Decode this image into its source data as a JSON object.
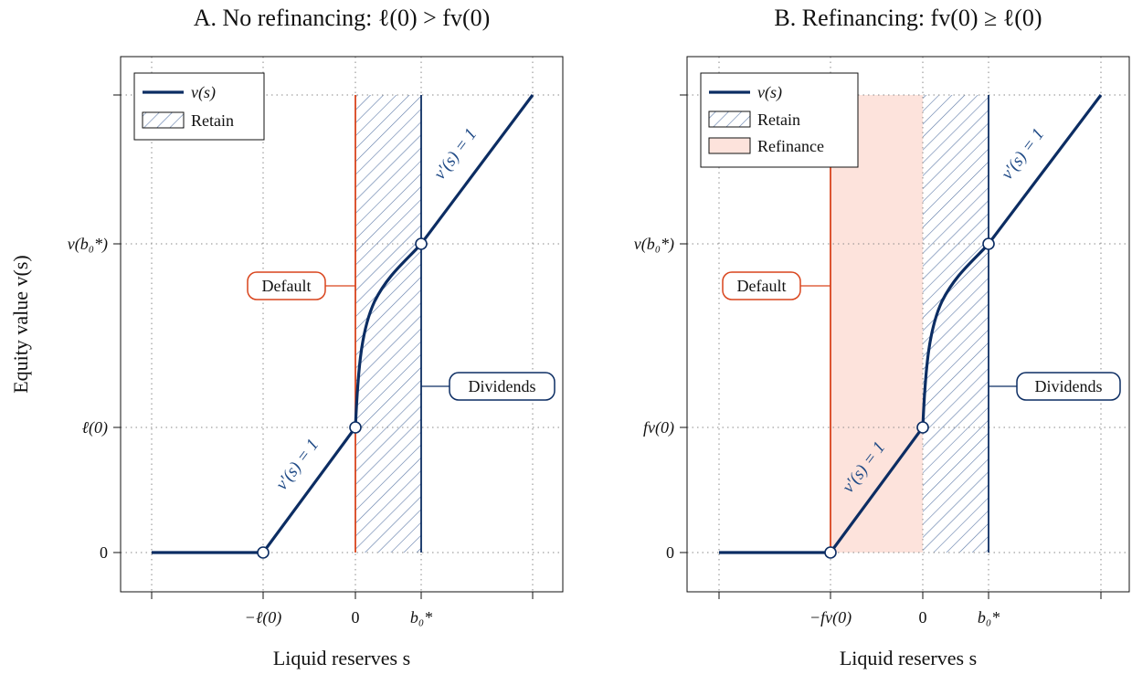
{
  "colors": {
    "value_line": "#0c2d63",
    "default": "#d9441c",
    "dividend": "#0c2d63",
    "retain_hatch": "#5e7aa8",
    "refinance_fill": "#fde3dc",
    "grid": "#8a8a8a"
  },
  "chart_data": [
    {
      "type": "line",
      "title": "A. No refinancing: ℓ(0) > fv(0)",
      "xlabel": "Liquid reserves s",
      "ylabel": "Equity value v(s)",
      "x_ticks": [
        "−ℓ(0)",
        "0",
        "b₀*"
      ],
      "y_ticks": [
        "0",
        "ℓ(0)",
        "v(b₀*)"
      ],
      "xlim": [
        -3,
        2.6
      ],
      "ylim": [
        -0.6,
        4.6
      ],
      "grid": true,
      "legend_position": "top-left",
      "legend": [
        {
          "label": "v(s)",
          "style": "line"
        },
        {
          "label": "Retain",
          "style": "hatch"
        }
      ],
      "series": [
        {
          "name": "v(s)",
          "x": [
            -3,
            -1.35,
            0,
            0.03,
            0.08,
            0.15,
            0.25,
            0.4,
            0.6,
            0.8,
            0.96,
            2.6
          ],
          "y": [
            0,
            0,
            1.35,
            1.65,
            1.95,
            2.2,
            2.45,
            2.7,
            2.93,
            3.13,
            2.95,
            4.6
          ]
        }
      ],
      "key_points": [
        {
          "x": -1.35,
          "y": 0
        },
        {
          "x": 0,
          "y": 1.35
        },
        {
          "x": 0.96,
          "y": 2.95
        }
      ],
      "regions": [
        {
          "label": "Retain",
          "x": [
            0,
            0.96
          ]
        }
      ],
      "boundaries": [
        {
          "label": "Default",
          "x": 0
        },
        {
          "label": "Dividends",
          "x": 0.96
        }
      ],
      "annotations": [
        "Default",
        "Dividends",
        "v′(s) = 1",
        "v′(s) = 1"
      ]
    },
    {
      "type": "line",
      "title": "B. Refinancing: fv(0) ≥ ℓ(0)",
      "xlabel": "Liquid reserves s",
      "ylabel": "",
      "x_ticks": [
        "−fv(0)",
        "0",
        "b₀*"
      ],
      "y_ticks": [
        "0",
        "fv(0)",
        "v(b₀*)"
      ],
      "xlim": [
        -3,
        2.6
      ],
      "ylim": [
        -0.6,
        4.6
      ],
      "grid": true,
      "legend_position": "top-left",
      "legend": [
        {
          "label": "v(s)",
          "style": "line"
        },
        {
          "label": "Retain",
          "style": "hatch"
        },
        {
          "label": "Refinance",
          "style": "fill"
        }
      ],
      "series": [
        {
          "name": "v(s)",
          "x": [
            -3,
            -1.35,
            0,
            0.03,
            0.08,
            0.15,
            0.25,
            0.4,
            0.6,
            0.8,
            0.96,
            2.6
          ],
          "y": [
            0,
            0,
            1.35,
            1.65,
            1.95,
            2.2,
            2.45,
            2.7,
            2.93,
            3.13,
            2.95,
            4.6
          ]
        }
      ],
      "key_points": [
        {
          "x": -1.35,
          "y": 0
        },
        {
          "x": 0,
          "y": 1.35
        },
        {
          "x": 0.96,
          "y": 2.95
        }
      ],
      "regions": [
        {
          "label": "Refinance",
          "x": [
            -1.35,
            0
          ]
        },
        {
          "label": "Retain",
          "x": [
            0,
            0.96
          ]
        }
      ],
      "boundaries": [
        {
          "label": "Default",
          "x": -1.35
        },
        {
          "label": "Dividends",
          "x": 0.96
        }
      ],
      "annotations": [
        "Default",
        "Dividends",
        "v′(s) = 1",
        "v′(s) = 1"
      ]
    }
  ]
}
